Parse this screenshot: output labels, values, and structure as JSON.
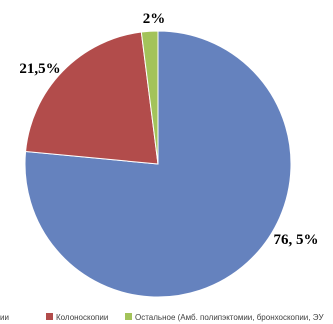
{
  "chart_data": {
    "type": "pie",
    "slices": [
      {
        "value": 76.5,
        "data_label": "76, 5%",
        "color": "#6582BE"
      },
      {
        "value": 21.5,
        "data_label": "21,5%",
        "color": "#B24C4B",
        "name": "Колоноскопии"
      },
      {
        "value": 2,
        "data_label": "2%",
        "color": "#A3C35A",
        "name": "Остальное (Амб. полипэктомии, бронхоскопии, ЭУ"
      }
    ],
    "legend": {
      "position": "bottom",
      "leading_fragment": "ии",
      "items": [
        "Колоноскопии",
        "Остальное (Амб. полипэктомии, бронхоскопии, ЭУ"
      ]
    }
  }
}
